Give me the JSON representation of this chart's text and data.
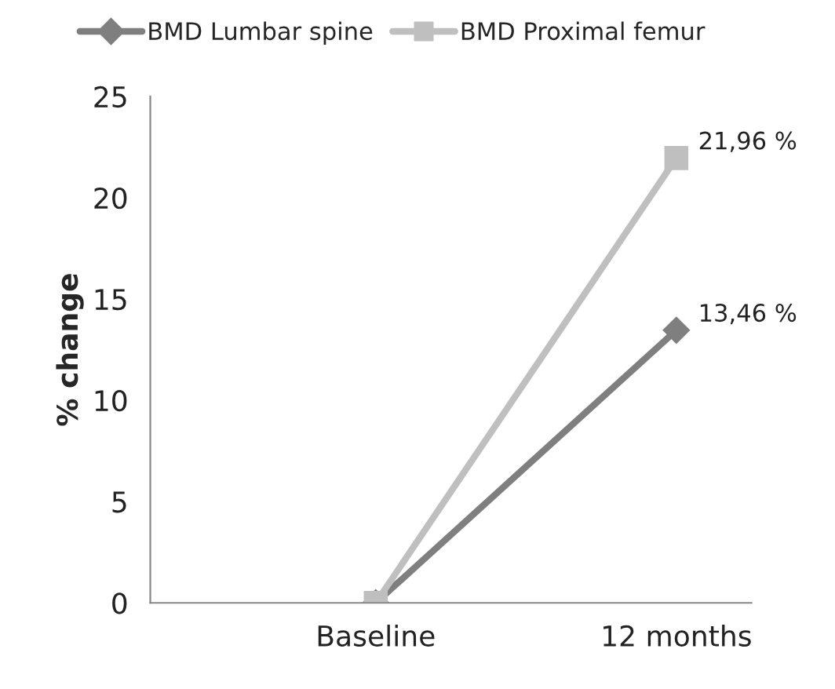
{
  "chart_data": {
    "type": "line",
    "ylabel": "% change",
    "categories": [
      "Baseline",
      "12 months"
    ],
    "series": [
      {
        "name": "BMD Lumbar spine",
        "color": "#7f7f7f",
        "marker": "diamond",
        "values": [
          0,
          13.46
        ],
        "value_labels": [
          null,
          "13,46 %"
        ]
      },
      {
        "name": "BMD Proximal femur",
        "color": "#bfbfbf",
        "marker": "square",
        "values": [
          0,
          21.96
        ],
        "value_labels": [
          null,
          "21,96 %"
        ]
      }
    ],
    "ylim": [
      0,
      25
    ],
    "yticks": [
      0,
      5,
      10,
      15,
      20,
      25
    ],
    "grid": false,
    "legend": "top",
    "line_style": "solid"
  }
}
